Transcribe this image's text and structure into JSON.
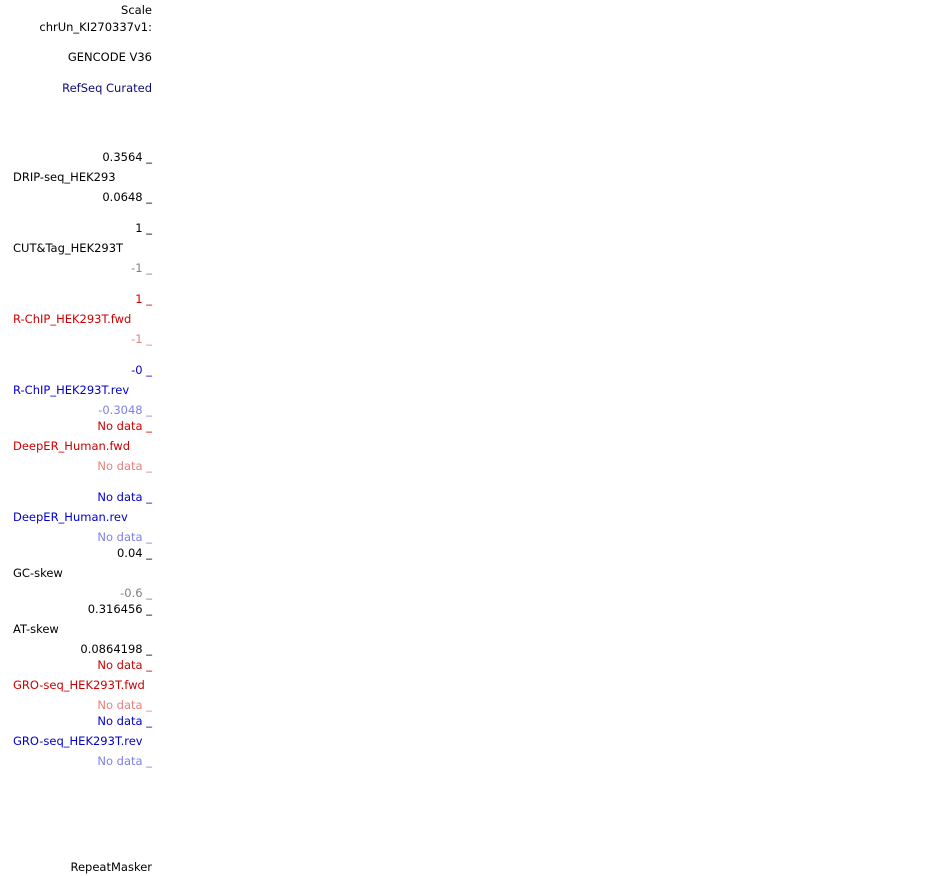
{
  "side_labels": {
    "scale": "Scale",
    "chrom": "chrUn_KI270337v1:",
    "gencode": "GENCODE V36",
    "refseq": "RefSeq Curated",
    "repeatmasker": "RepeatMasker"
  },
  "tracks": [
    {
      "name": "DRIP-seq_HEK293",
      "max": "0.3564 _",
      "min": "0.0648 _"
    },
    {
      "name": "CUT&Tag_HEK293T",
      "max": "1 _",
      "min": "-1 _"
    },
    {
      "name": "R-ChIP_HEK293T.fwd",
      "max": "1 _",
      "min": "-1 _"
    },
    {
      "name": "R-ChIP_HEK293T.rev",
      "max": "-0 _",
      "min": "-0.3048 _"
    },
    {
      "name": "DeepER_Human.fwd",
      "max": "No data _",
      "min": "No data _"
    },
    {
      "name": "DeepER_Human.rev",
      "max": "No data _",
      "min": "No data _"
    },
    {
      "name": "GC-skew",
      "max": "0.04 _",
      "min": "-0.6 _"
    },
    {
      "name": "AT-skew",
      "max": "0.316456 _",
      "min": "0.0864198 _"
    },
    {
      "name": "GRO-seq_HEK293T.fwd",
      "max": "No data _",
      "min": "No data _"
    },
    {
      "name": "GRO-seq_HEK293T.rev",
      "max": "No data _",
      "min": "No data _"
    }
  ],
  "colors": {
    "black": "#000000",
    "grey": "#7f7f7f",
    "navy": "#0c0c78",
    "red": "#cc0000",
    "light_red": "#e57f7f",
    "blue": "#0000cc",
    "light_blue": "#7f7fe5"
  }
}
